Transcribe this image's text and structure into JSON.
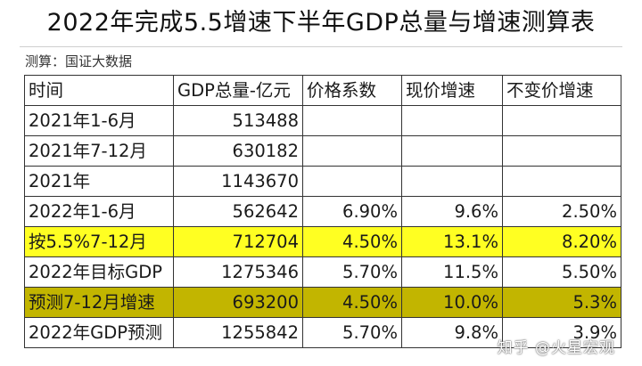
{
  "title": "2022年完成5.5增速下半年GDP总量与增速测算表",
  "source": "测算：国证大数据",
  "table": {
    "headers": [
      "时间",
      "GDP总量-亿元",
      "价格系数",
      "现价增速",
      "不变价增速"
    ],
    "rows": [
      [
        "2021年1-6月",
        "513488",
        "",
        "",
        ""
      ],
      [
        "2021年7-12月",
        "630182",
        "",
        "",
        ""
      ],
      [
        "2021年",
        "1143670",
        "",
        "",
        ""
      ],
      [
        "2022年1-6月",
        "562642",
        "6.90%",
        "9.6%",
        "2.50%"
      ],
      [
        "按5.5%7-12月",
        "712704",
        "4.50%",
        "13.1%",
        "8.20%"
      ],
      [
        "2022年目标GDP",
        "1275346",
        "5.70%",
        "11.5%",
        "5.50%"
      ],
      [
        "预测7-12月增速",
        "693200",
        "4.50%",
        "10.0%",
        "5.3%"
      ],
      [
        "2022年GDP预测",
        "1255842",
        "5.70%",
        "9.8%",
        "3.9%"
      ]
    ]
  },
  "watermark": "知乎 @火星宏观",
  "colors": {
    "highlight_yellow": "#ffff22",
    "highlight_olive": "#c2b500"
  }
}
